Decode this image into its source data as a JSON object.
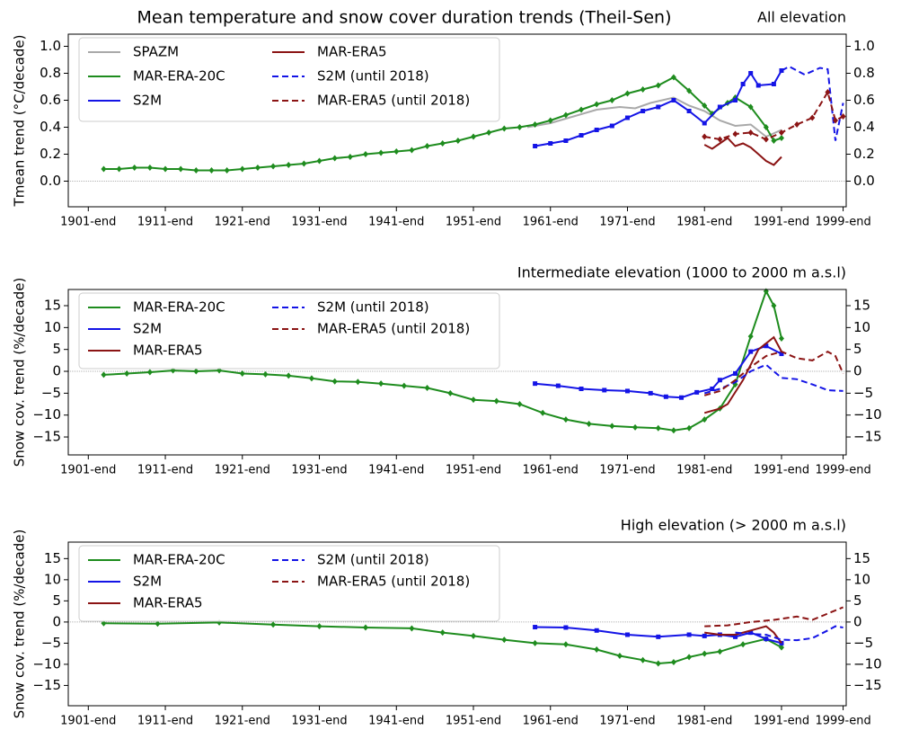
{
  "title": "Mean temperature and snow cover duration trends (Theil-Sen)",
  "chart_data": [
    {
      "type": "line",
      "title": "All elevation",
      "ylabel": "Tmean trend (°C/decade)",
      "xlim": [
        1898.4,
        1999.4
      ],
      "xticks": [
        {
          "value": 1901,
          "label": "1901-end"
        },
        {
          "value": 1911,
          "label": "1911-end"
        },
        {
          "value": 1921,
          "label": "1921-end"
        },
        {
          "value": 1931,
          "label": "1931-end"
        },
        {
          "value": 1941,
          "label": "1941-end"
        },
        {
          "value": 1951,
          "label": "1951-end"
        },
        {
          "value": 1961,
          "label": "1961-end"
        },
        {
          "value": 1971,
          "label": "1971-end"
        },
        {
          "value": 1981,
          "label": "1981-end"
        },
        {
          "value": 1991,
          "label": "1991-end"
        },
        {
          "value": 1999,
          "label": "1999-end"
        }
      ],
      "ylim": [
        -0.19,
        1.09
      ],
      "yticks": [
        {
          "value": 0,
          "label": "0.0"
        },
        {
          "value": 0.2,
          "label": "0.2"
        },
        {
          "value": 0.4,
          "label": "0.4"
        },
        {
          "value": 0.6,
          "label": "0.6"
        },
        {
          "value": 0.8,
          "label": "0.8"
        },
        {
          "value": 1,
          "label": "1.0"
        }
      ],
      "series": [
        {
          "name": "SPAZM",
          "color": "#a9a9a9",
          "dashed": false,
          "marker": "none",
          "x": [
            1958,
            1961,
            1964,
            1967,
            1970,
            1972,
            1974,
            1977,
            1979,
            1981,
            1983,
            1985,
            1987,
            1989,
            1991
          ],
          "values": [
            0.4,
            0.43,
            0.48,
            0.53,
            0.55,
            0.54,
            0.58,
            0.62,
            0.56,
            0.52,
            0.45,
            0.41,
            0.42,
            0.33,
            0.38
          ]
        },
        {
          "name": "MAR-ERA-20C",
          "color": "#1e8c1e",
          "dashed": false,
          "marker": "diamond",
          "x": [
            1903,
            1905,
            1907,
            1909,
            1911,
            1913,
            1915,
            1917,
            1919,
            1921,
            1923,
            1925,
            1927,
            1929,
            1931,
            1933,
            1935,
            1937,
            1939,
            1941,
            1943,
            1945,
            1947,
            1949,
            1951,
            1953,
            1955,
            1957,
            1959,
            1961,
            1963,
            1965,
            1967,
            1969,
            1971,
            1973,
            1975,
            1977,
            1979,
            1981,
            1982,
            1984,
            1985,
            1987,
            1989,
            1990,
            1991
          ],
          "values": [
            0.09,
            0.09,
            0.1,
            0.1,
            0.09,
            0.09,
            0.08,
            0.08,
            0.08,
            0.09,
            0.1,
            0.11,
            0.12,
            0.13,
            0.15,
            0.17,
            0.18,
            0.2,
            0.21,
            0.22,
            0.23,
            0.26,
            0.28,
            0.3,
            0.33,
            0.36,
            0.39,
            0.4,
            0.42,
            0.45,
            0.49,
            0.53,
            0.57,
            0.6,
            0.65,
            0.68,
            0.71,
            0.77,
            0.67,
            0.56,
            0.5,
            0.58,
            0.62,
            0.55,
            0.4,
            0.3,
            0.32
          ]
        },
        {
          "name": "S2M",
          "color": "#1414e6",
          "dashed": false,
          "marker": "square",
          "x": [
            1959,
            1961,
            1963,
            1965,
            1967,
            1969,
            1971,
            1973,
            1975,
            1977,
            1979,
            1981,
            1983,
            1985,
            1986,
            1987,
            1988,
            1990,
            1991
          ],
          "values": [
            0.26,
            0.28,
            0.3,
            0.34,
            0.38,
            0.41,
            0.47,
            0.52,
            0.55,
            0.6,
            0.52,
            0.43,
            0.55,
            0.6,
            0.72,
            0.8,
            0.71,
            0.72,
            0.82
          ]
        },
        {
          "name": "MAR-ERA5",
          "color": "#8b1414",
          "dashed": false,
          "marker": "none",
          "x": [
            1981,
            1982,
            1983,
            1984,
            1985,
            1986,
            1987,
            1988,
            1989,
            1990,
            1991
          ],
          "values": [
            0.27,
            0.24,
            0.28,
            0.32,
            0.26,
            0.28,
            0.25,
            0.2,
            0.15,
            0.12,
            0.18
          ]
        },
        {
          "name": "S2M (until 2018)",
          "color": "#1414e6",
          "dashed": true,
          "marker": "none",
          "x": [
            1991,
            1992,
            1994,
            1996,
            1997,
            1998,
            1999
          ],
          "values": [
            0.82,
            0.85,
            0.79,
            0.84,
            0.83,
            0.3,
            0.58
          ]
        },
        {
          "name": "MAR-ERA5 (until 2018)",
          "color": "#8b1414",
          "dashed": true,
          "marker": "diamond",
          "x": [
            1981,
            1983,
            1985,
            1987,
            1989,
            1991,
            1993,
            1995,
            1997,
            1998,
            1999
          ],
          "values": [
            0.33,
            0.31,
            0.35,
            0.36,
            0.31,
            0.36,
            0.42,
            0.47,
            0.66,
            0.45,
            0.48
          ]
        }
      ]
    },
    {
      "type": "line",
      "title": "Intermediate elevation (1000 to 2000 m a.s.l)",
      "ylabel": "Snow cov. trend (%/decade)",
      "xlim": [
        1898.4,
        1999.4
      ],
      "xticks": [
        {
          "value": 1901,
          "label": "1901-end"
        },
        {
          "value": 1911,
          "label": "1911-end"
        },
        {
          "value": 1921,
          "label": "1921-end"
        },
        {
          "value": 1931,
          "label": "1931-end"
        },
        {
          "value": 1941,
          "label": "1941-end"
        },
        {
          "value": 1951,
          "label": "1951-end"
        },
        {
          "value": 1961,
          "label": "1961-end"
        },
        {
          "value": 1971,
          "label": "1971-end"
        },
        {
          "value": 1981,
          "label": "1981-end"
        },
        {
          "value": 1991,
          "label": "1991-end"
        },
        {
          "value": 1999,
          "label": "1999-end"
        }
      ],
      "ylim": [
        -19.1,
        18.7
      ],
      "yticks": [
        {
          "value": -15,
          "label": "−15"
        },
        {
          "value": -10,
          "label": "−10"
        },
        {
          "value": -5,
          "label": "−5"
        },
        0,
        5,
        10,
        15
      ],
      "series": [
        {
          "name": "MAR-ERA-20C",
          "color": "#1e8c1e",
          "dashed": false,
          "marker": "diamond",
          "x": [
            1903,
            1906,
            1909,
            1912,
            1915,
            1918,
            1921,
            1924,
            1927,
            1930,
            1933,
            1936,
            1939,
            1942,
            1945,
            1948,
            1951,
            1954,
            1957,
            1960,
            1963,
            1966,
            1969,
            1972,
            1975,
            1977,
            1979,
            1981,
            1983,
            1985,
            1987,
            1989,
            1990,
            1991
          ],
          "values": [
            -0.8,
            -0.5,
            -0.2,
            0.2,
            0,
            0.2,
            -0.5,
            -0.7,
            -1.0,
            -1.6,
            -2.3,
            -2.4,
            -2.8,
            -3.3,
            -3.8,
            -5.0,
            -6.5,
            -6.8,
            -7.5,
            -9.5,
            -11,
            -12,
            -12.5,
            -12.8,
            -13.0,
            -13.5,
            -13.0,
            -11.0,
            -8.5,
            -3,
            8,
            18.3,
            15,
            7.5
          ]
        },
        {
          "name": "S2M",
          "color": "#1414e6",
          "dashed": false,
          "marker": "square",
          "x": [
            1959,
            1962,
            1965,
            1968,
            1971,
            1974,
            1976,
            1978,
            1980,
            1982,
            1983,
            1985,
            1987,
            1989,
            1991
          ],
          "values": [
            -2.8,
            -3.3,
            -4.0,
            -4.3,
            -4.5,
            -5.0,
            -5.8,
            -6.0,
            -4.8,
            -4.0,
            -2.0,
            -0.5,
            4.5,
            5.8,
            4.0
          ]
        },
        {
          "name": "MAR-ERA5",
          "color": "#8b1414",
          "dashed": false,
          "marker": "none",
          "x": [
            1981,
            1983,
            1984,
            1986,
            1988,
            1990,
            1991
          ],
          "values": [
            -9.5,
            -8.5,
            -7.5,
            -2,
            5,
            7.8,
            4.5
          ]
        },
        {
          "name": "S2M (until 2018)",
          "color": "#1414e6",
          "dashed": true,
          "marker": "none",
          "x": [
            1981,
            1983,
            1985,
            1987,
            1989,
            1991,
            1993,
            1995,
            1997,
            1999
          ],
          "values": [
            -5.0,
            -4.0,
            -2.5,
            0,
            1.5,
            -1.5,
            -1.8,
            -3.0,
            -4.3,
            -4.5
          ]
        },
        {
          "name": "MAR-ERA5 (until 2018)",
          "color": "#8b1414",
          "dashed": true,
          "marker": "none",
          "x": [
            1981,
            1983,
            1985,
            1987,
            1989,
            1991,
            1993,
            1995,
            1997,
            1998,
            1999
          ],
          "values": [
            -5.5,
            -4.5,
            -2,
            1,
            3.5,
            4.5,
            3,
            2.5,
            4.5,
            3.5,
            -0.5
          ]
        }
      ]
    },
    {
      "type": "line",
      "title": "High elevation (> 2000 m a.s.l)",
      "ylabel": "Snow cov. trend (%/decade)",
      "xlim": [
        1898.4,
        1999.4
      ],
      "xticks": [
        {
          "value": 1901,
          "label": "1901-end"
        },
        {
          "value": 1911,
          "label": "1911-end"
        },
        {
          "value": 1921,
          "label": "1921-end"
        },
        {
          "value": 1931,
          "label": "1931-end"
        },
        {
          "value": 1941,
          "label": "1941-end"
        },
        {
          "value": 1951,
          "label": "1951-end"
        },
        {
          "value": 1961,
          "label": "1961-end"
        },
        {
          "value": 1971,
          "label": "1971-end"
        },
        {
          "value": 1981,
          "label": "1981-end"
        },
        {
          "value": 1991,
          "label": "1991-end"
        },
        {
          "value": 1999,
          "label": "1999-end"
        }
      ],
      "ylim": [
        -19.8,
        18.9
      ],
      "yticks": [
        {
          "value": -15,
          "label": "−15"
        },
        {
          "value": -10,
          "label": "−10"
        },
        {
          "value": -5,
          "label": "−5"
        },
        0,
        5,
        10,
        15
      ],
      "series": [
        {
          "name": "MAR-ERA-20C",
          "color": "#1e8c1e",
          "dashed": false,
          "marker": "diamond",
          "x": [
            1903,
            1910,
            1918,
            1925,
            1931,
            1937,
            1943,
            1947,
            1951,
            1955,
            1959,
            1963,
            1967,
            1970,
            1973,
            1975,
            1977,
            1979,
            1981,
            1983,
            1986,
            1989,
            1991
          ],
          "values": [
            -0.3,
            -0.4,
            -0.1,
            -0.6,
            -1.0,
            -1.3,
            -1.5,
            -2.5,
            -3.3,
            -4.2,
            -5.0,
            -5.3,
            -6.5,
            -8.0,
            -9.0,
            -9.8,
            -9.5,
            -8.3,
            -7.5,
            -7.0,
            -5.3,
            -4.0,
            -6.0
          ]
        },
        {
          "name": "S2M",
          "color": "#1414e6",
          "dashed": false,
          "marker": "square",
          "x": [
            1959,
            1963,
            1967,
            1971,
            1975,
            1979,
            1981,
            1983,
            1985,
            1987,
            1989,
            1991
          ],
          "values": [
            -1.2,
            -1.3,
            -2.0,
            -3.0,
            -3.5,
            -3.0,
            -3.3,
            -3.0,
            -3.5,
            -2.5,
            -4.0,
            -5.0
          ]
        },
        {
          "name": "MAR-ERA5",
          "color": "#8b1414",
          "dashed": false,
          "marker": "none",
          "x": [
            1981,
            1983,
            1985,
            1987,
            1989,
            1990,
            1991
          ],
          "values": [
            -2.5,
            -3.0,
            -3.0,
            -2.0,
            -1.0,
            -2.5,
            -5.0
          ]
        },
        {
          "name": "S2M (until 2018)",
          "color": "#1414e6",
          "dashed": true,
          "marker": "none",
          "x": [
            1985,
            1987,
            1989,
            1991,
            1993,
            1995,
            1997,
            1998,
            1999
          ],
          "values": [
            -2.5,
            -2.8,
            -3.0,
            -4.2,
            -4.3,
            -3.8,
            -2.0,
            -1.0,
            -1.3
          ]
        },
        {
          "name": "MAR-ERA5 (until 2018)",
          "color": "#8b1414",
          "dashed": true,
          "marker": "none",
          "x": [
            1981,
            1984,
            1987,
            1990,
            1993,
            1995,
            1997,
            1999
          ],
          "values": [
            -1.0,
            -0.8,
            0.0,
            0.5,
            1.3,
            0.5,
            2.0,
            3.5
          ]
        }
      ]
    }
  ]
}
